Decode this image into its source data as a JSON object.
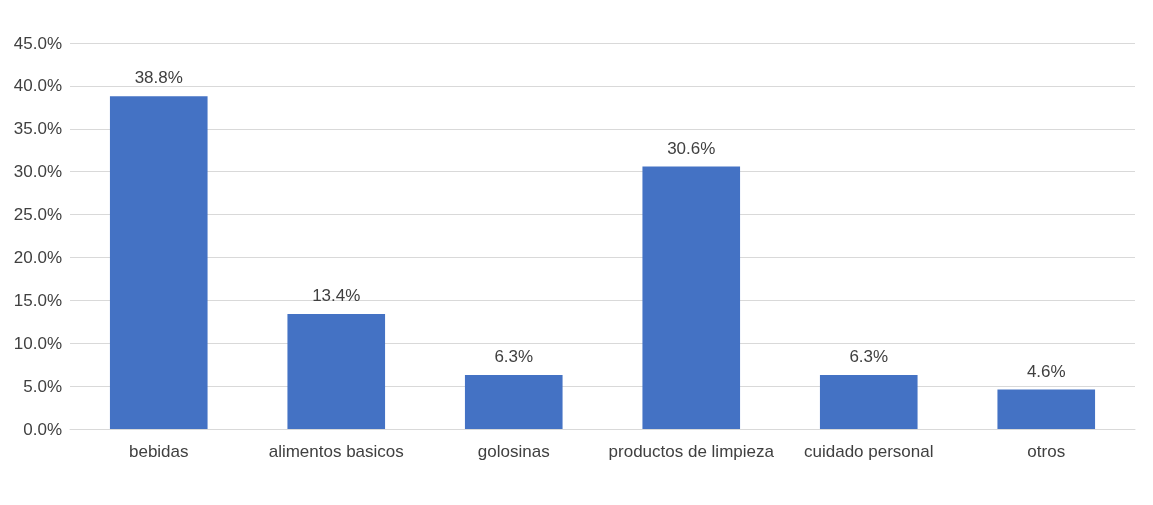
{
  "chart_data": {
    "type": "bar",
    "categories": [
      "bebidas",
      "alimentos basicos",
      "golosinas",
      "productos de limpieza",
      "cuidado personal",
      "otros"
    ],
    "values": [
      38.8,
      13.4,
      6.3,
      30.6,
      6.3,
      4.6
    ],
    "value_labels": [
      "38.8%",
      "13.4%",
      "6.3%",
      "30.6%",
      "6.3%",
      "4.6%"
    ],
    "color": "#4472c4",
    "ylim": [
      0,
      45
    ],
    "yticks": [
      {
        "value": 0,
        "label": "0.0%"
      },
      {
        "value": 5,
        "label": "5.0%"
      },
      {
        "value": 10,
        "label": "10.0%"
      },
      {
        "value": 15,
        "label": "15.0%"
      },
      {
        "value": 20,
        "label": "20.0%"
      },
      {
        "value": 25,
        "label": "25.0%"
      },
      {
        "value": 30,
        "label": "30.0%"
      },
      {
        "value": 35,
        "label": "35.0%"
      },
      {
        "value": 40,
        "label": "40.0%"
      },
      {
        "value": 45,
        "label": "45.0%"
      }
    ],
    "grid": true
  }
}
